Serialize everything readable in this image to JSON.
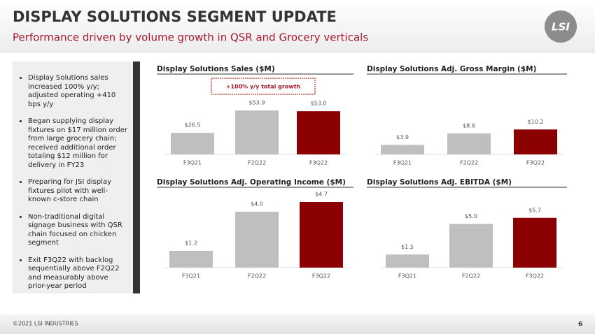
{
  "header": {
    "title": "DISPLAY SOLUTIONS SEGMENT UPDATE",
    "subtitle": "Performance driven by volume growth in QSR and Grocery verticals",
    "logo": "LSI"
  },
  "bullets": [
    "Display Solutions sales increased 100% y/y; adjusted operating +410 bps y/y",
    "Began supplying display fixtures on $17 million order from large grocery chain; received additional order totaling $12 million for delivery in FY23",
    "Preparing for JSI display fixtures pilot with well-known c-store chain",
    "Non-traditional digital signage business with QSR chain focused on chicken segment",
    "Exit F3Q22 with backlog sequentially above F2Q22 and measurably above prior-year period"
  ],
  "chart_data": [
    {
      "type": "bar",
      "title": "Display Solutions Sales ($M)",
      "annotation": "+100% y/y total growth",
      "categories": [
        "F3Q21",
        "F2Q22",
        "F3Q22"
      ],
      "values": [
        26.5,
        53.9,
        53.0
      ],
      "value_labels": [
        "$26.5",
        "$53.9",
        "$53.0"
      ],
      "colors": [
        "#bfbfbf",
        "#bfbfbf",
        "#8b0000"
      ],
      "ylim": [
        0,
        60
      ]
    },
    {
      "type": "bar",
      "title": "Display Solutions Adj. Gross Margin ($M)",
      "categories": [
        "F3Q21",
        "F2Q22",
        "F3Q22"
      ],
      "values": [
        3.9,
        8.6,
        10.2
      ],
      "value_labels": [
        "$3.9",
        "$8.6",
        "$10.2"
      ],
      "colors": [
        "#bfbfbf",
        "#bfbfbf",
        "#8b0000"
      ],
      "ylim": [
        0,
        20
      ]
    },
    {
      "type": "bar",
      "title": "Display Solutions Adj. Operating Income ($M)",
      "categories": [
        "F3Q21",
        "F2Q22",
        "F3Q22"
      ],
      "values": [
        1.2,
        4.0,
        4.7
      ],
      "value_labels": [
        "$1.2",
        "$4.0",
        "$4.7"
      ],
      "colors": [
        "#bfbfbf",
        "#bfbfbf",
        "#8b0000"
      ],
      "ylim": [
        0,
        5
      ]
    },
    {
      "type": "bar",
      "title": "Display Solutions Adj. EBITDA ($M)",
      "categories": [
        "F3Q21",
        "F2Q22",
        "F3Q22"
      ],
      "values": [
        1.5,
        5.0,
        5.7
      ],
      "value_labels": [
        "$1.5",
        "$5.0",
        "$5.7"
      ],
      "colors": [
        "#bfbfbf",
        "#bfbfbf",
        "#8b0000"
      ],
      "ylim": [
        0,
        8
      ]
    }
  ],
  "footer": {
    "copyright": "©2021 LSI INDUSTRIES",
    "page": "6"
  }
}
